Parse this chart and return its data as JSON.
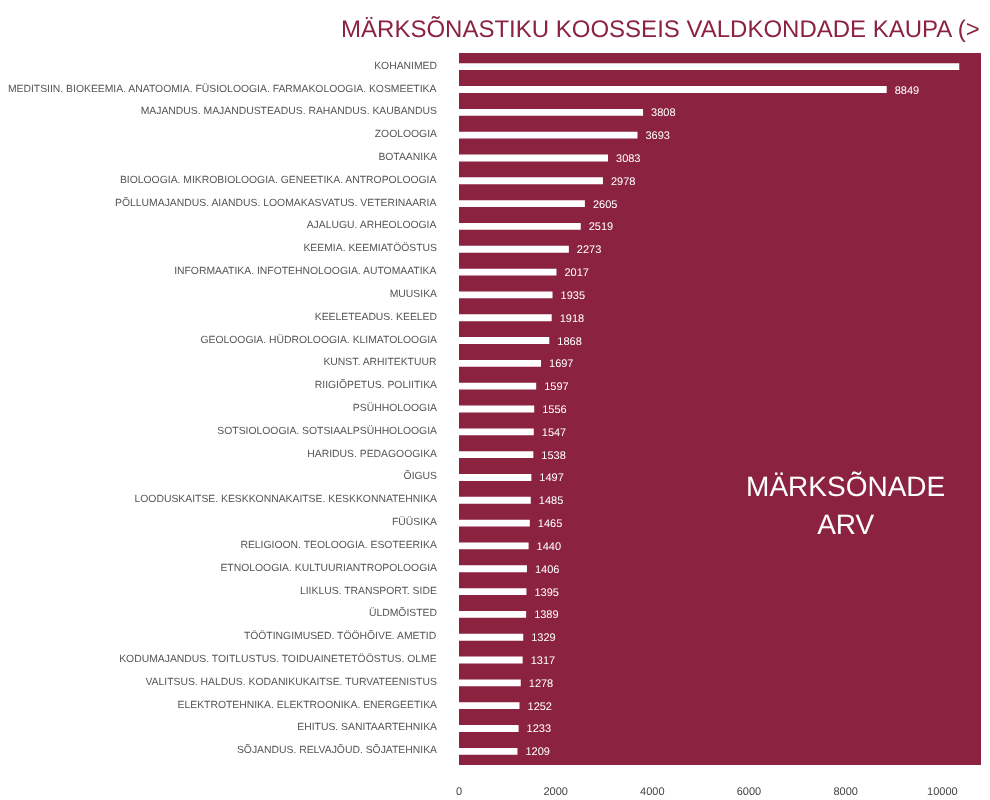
{
  "chart_data": {
    "type": "bar",
    "orientation": "horizontal",
    "title": "MÄRKSÕNASTIKU KOOSSEIS VALDKONDADE KAUPA (>",
    "categories": [
      "KOHANIMED",
      "MEDITSIIN. BIOKEEMIA. ANATOOMIA. FÜSIOLOOGIA. FARMAKOLOOGIA. KOSMEETIKA",
      "MAJANDUS. MAJANDUSTEADUS. RAHANDUS. KAUBANDUS",
      "ZOOLOOGIA",
      "BOTAANIKA",
      "BIOLOOGIA. MIKROBIOLOOGIA. GENEETIKA. ANTROPOLOOGIA",
      "PÕLLUMAJANDUS. AIANDUS. LOOMAKASVATUS. VETERINAARIA",
      "AJALUGU. ARHEOLOOGIA",
      "KEEMIA. KEEMIATÖÖSTUS",
      "INFORMAATIKA. INFOTEHNOLOOGIA. AUTOMAATIKA",
      "MUUSIKA",
      "KEELETEADUS. KEELED",
      "GEOLOOGIA. HÜDROLOOGIA. KLIMATOLOOGIA",
      "KUNST. ARHITEKTUUR",
      "RIIGIÕPETUS. POLIITIKA",
      "PSÜHHOLOOGIA",
      "SOTSIOLOOGIA. SOTSIAALPSÜHHOLOOGIA",
      "HARIDUS. PEDAGOOGIKA",
      "ÕIGUS",
      "LOODUSKAITSE. KESKKONNAKAITSE. KESKKONNATEHNIKA",
      "FÜÜSIKA",
      "RELIGIOON. TEOLOOGIA. ESOTEERIKA",
      "ETNOLOOGIA. KULTUURIANTROPOLOOGIA",
      "LIIKLUS. TRANSPORT. SIDE",
      "ÜLDMÕISTED",
      "TÖÖTINGIMUSED. TÖÖHÕIVE. AMETID",
      "KODUMAJANDUS. TOITLUSTUS. TOIDUAINETETÖÖSTUS. OLME",
      "VALITSUS. HALDUS. KODANIKUKAITSE. TURVATEENISTUS",
      "ELEKTROTEHNIKA. ELEKTROONIKA. ENERGEETIKA",
      "EHITUS. SANITAARTEHNIKA",
      "SÕJANDUS. RELVAJÕUD. SÕJATEHNIKA"
    ],
    "values": [
      10350,
      8849,
      3808,
      3693,
      3083,
      2978,
      2605,
      2519,
      2273,
      2017,
      1935,
      1918,
      1868,
      1697,
      1597,
      1556,
      1547,
      1538,
      1497,
      1485,
      1465,
      1440,
      1406,
      1395,
      1389,
      1329,
      1317,
      1278,
      1252,
      1233,
      1209
    ],
    "value_labels": [
      null,
      "8849",
      "3808",
      "3693",
      "3083",
      "2978",
      "2605",
      "2519",
      "2273",
      "2017",
      "1935",
      "1918",
      "1868",
      "1697",
      "1597",
      "1556",
      "1547",
      "1538",
      "1497",
      "1485",
      "1465",
      "1440",
      "1406",
      "1395",
      "1389",
      "1329",
      "1317",
      "1278",
      "1252",
      "1233",
      "1209"
    ],
    "color": "#ffffff",
    "xlim": [
      0,
      10800
    ],
    "xticks": [
      0,
      2000,
      4000,
      6000,
      8000,
      10000
    ],
    "grid": false,
    "annotations": [
      "MÄRKSÕNADE\nARV"
    ]
  }
}
